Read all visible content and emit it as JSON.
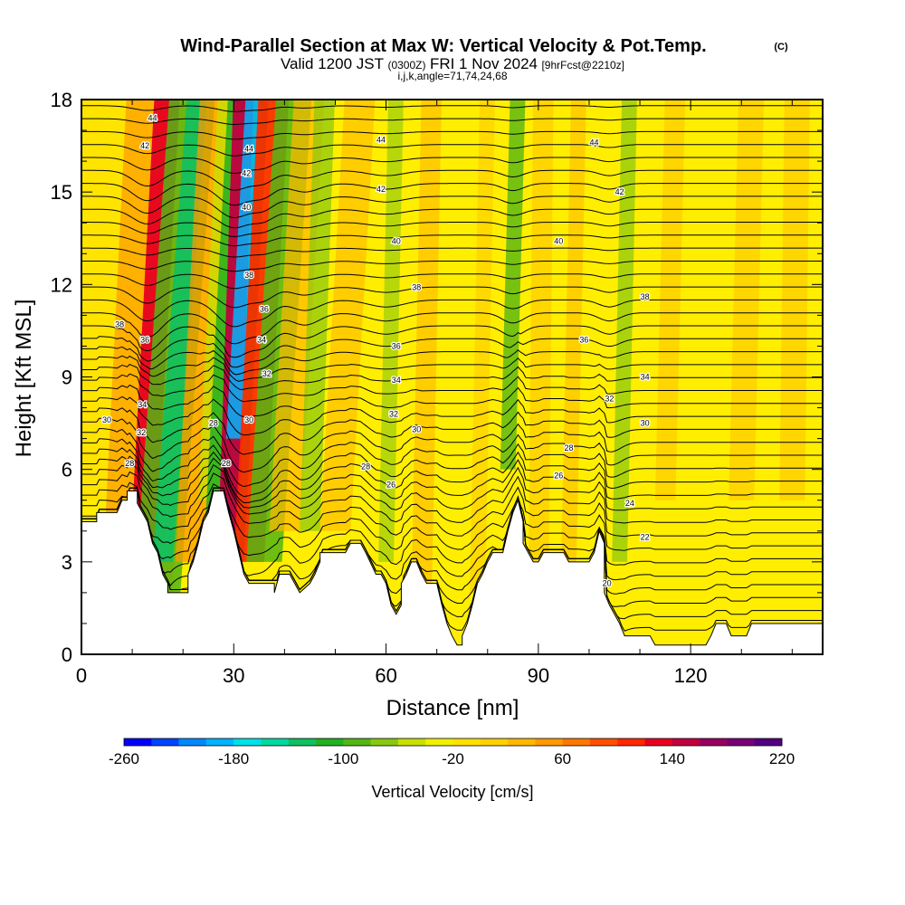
{
  "header": {
    "title": "Wind-Parallel Section at Max W: Vertical Velocity & Pot.Temp.",
    "copyright": "(C)",
    "valid_prefix": "Valid 1200 JST",
    "valid_z": "(0300Z)",
    "valid_date": "FRI 1 Nov 2024",
    "fcst": "[9hrFcst@2210z]",
    "params": "i,j,k,angle=71,74,24,68"
  },
  "chart_data": {
    "type": "heatmap",
    "xlabel": "Distance [nm]",
    "ylabel": "Height [Kft MSL]",
    "xlim": [
      0,
      146
    ],
    "ylim": [
      0,
      18
    ],
    "x_ticks": [
      0,
      30,
      60,
      90,
      120
    ],
    "y_ticks": [
      0,
      3,
      6,
      9,
      12,
      15,
      18
    ],
    "colorbar": {
      "label": "Vertical Velocity [cm/s]",
      "ticks": [
        -260,
        -180,
        -100,
        -20,
        60,
        140,
        220
      ],
      "colors": [
        "#0000ff",
        "#0044ff",
        "#0088ff",
        "#00b4ff",
        "#00e0e8",
        "#00d8a0",
        "#10c060",
        "#22b022",
        "#55b515",
        "#88c810",
        "#c8e000",
        "#f0f000",
        "#ffe000",
        "#ffd000",
        "#ffb800",
        "#ff9a00",
        "#ff7800",
        "#ff5000",
        "#ff2800",
        "#e80020",
        "#c00040",
        "#980060",
        "#780078",
        "#500080"
      ]
    },
    "isentrope_labels": [
      {
        "text": "44",
        "x": 14,
        "y": 17.4
      },
      {
        "text": "42",
        "x": 12.5,
        "y": 16.5
      },
      {
        "text": "44",
        "x": 33,
        "y": 16.4
      },
      {
        "text": "42",
        "x": 32.5,
        "y": 15.6
      },
      {
        "text": "40",
        "x": 32.5,
        "y": 14.5
      },
      {
        "text": "38",
        "x": 33,
        "y": 12.3
      },
      {
        "text": "36",
        "x": 36,
        "y": 11.2
      },
      {
        "text": "34",
        "x": 35.5,
        "y": 10.2
      },
      {
        "text": "32",
        "x": 36.5,
        "y": 9.1
      },
      {
        "text": "30",
        "x": 33,
        "y": 7.6
      },
      {
        "text": "28",
        "x": 26,
        "y": 7.5
      },
      {
        "text": "28",
        "x": 28.5,
        "y": 6.2
      },
      {
        "text": "38",
        "x": 7.5,
        "y": 10.7
      },
      {
        "text": "36",
        "x": 12.5,
        "y": 10.2
      },
      {
        "text": "34",
        "x": 12,
        "y": 8.1
      },
      {
        "text": "32",
        "x": 11.8,
        "y": 7.2
      },
      {
        "text": "30",
        "x": 5,
        "y": 7.6
      },
      {
        "text": "28",
        "x": 9.5,
        "y": 6.2
      },
      {
        "text": "44",
        "x": 59,
        "y": 16.7
      },
      {
        "text": "42",
        "x": 59,
        "y": 15.1
      },
      {
        "text": "40",
        "x": 62,
        "y": 13.4
      },
      {
        "text": "38",
        "x": 66,
        "y": 11.9
      },
      {
        "text": "36",
        "x": 62,
        "y": 10.0
      },
      {
        "text": "34",
        "x": 62,
        "y": 8.9
      },
      {
        "text": "32",
        "x": 61.5,
        "y": 7.8
      },
      {
        "text": "30",
        "x": 66,
        "y": 7.3
      },
      {
        "text": "28",
        "x": 56,
        "y": 6.1
      },
      {
        "text": "26",
        "x": 61,
        "y": 5.5
      },
      {
        "text": "44",
        "x": 101,
        "y": 16.6
      },
      {
        "text": "42",
        "x": 106,
        "y": 15.0
      },
      {
        "text": "40",
        "x": 94,
        "y": 13.4
      },
      {
        "text": "38",
        "x": 111,
        "y": 11.6
      },
      {
        "text": "36",
        "x": 99,
        "y": 10.2
      },
      {
        "text": "34",
        "x": 111,
        "y": 9.0
      },
      {
        "text": "32",
        "x": 104,
        "y": 8.3
      },
      {
        "text": "30",
        "x": 111,
        "y": 7.5
      },
      {
        "text": "28",
        "x": 96,
        "y": 6.7
      },
      {
        "text": "26",
        "x": 94,
        "y": 5.8
      },
      {
        "text": "24",
        "x": 108,
        "y": 4.9
      },
      {
        "text": "22",
        "x": 111,
        "y": 3.8
      },
      {
        "text": "20",
        "x": 103.5,
        "y": 2.3
      }
    ]
  }
}
